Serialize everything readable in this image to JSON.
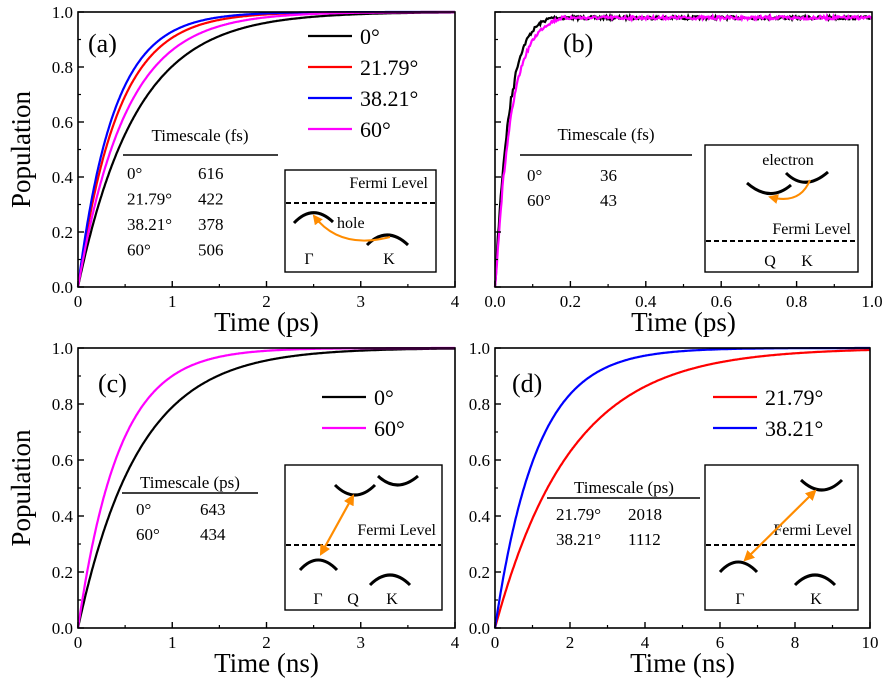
{
  "chart_data": [
    {
      "panel": "(a)",
      "type": "line",
      "xlabel": "Time (ps)",
      "ylabel": "Population",
      "xlim": [
        0,
        4
      ],
      "ylim": [
        0,
        1.0
      ],
      "xticks": [
        "0",
        "1",
        "2",
        "3",
        "4"
      ],
      "yticks": [
        "0.0",
        "0.2",
        "0.4",
        "0.6",
        "0.8",
        "1.0"
      ],
      "model": "1-exp(-t/tau)",
      "series": [
        {
          "name": "0°",
          "color": "#000000",
          "tau": 0.616
        },
        {
          "name": "21.79°",
          "color": "#ff0000",
          "tau": 0.422
        },
        {
          "name": "38.21°",
          "color": "#0000ff",
          "tau": 0.378
        },
        {
          "name": "60°",
          "color": "#ff00ff",
          "tau": 0.506
        }
      ],
      "legend": "top-right",
      "table": {
        "title": "Timescale (fs)",
        "rows": [
          [
            "0°",
            "616"
          ],
          [
            "21.79°",
            "422"
          ],
          [
            "38.21°",
            "378"
          ],
          [
            "60°",
            "506"
          ]
        ]
      },
      "inset": {
        "fermi": "Fermi Level",
        "carrier": "hole",
        "points": [
          "Γ",
          "K"
        ]
      }
    },
    {
      "panel": "(b)",
      "type": "line",
      "xlabel": "Time (ps)",
      "ylabel": "",
      "xlim": [
        0,
        1.0
      ],
      "ylim": [
        0,
        1.0
      ],
      "xticks": [
        "0.0",
        "0.2",
        "0.4",
        "0.6",
        "0.8",
        "1.0"
      ],
      "yticks": [],
      "model": "1-exp(-t/tau), noisy",
      "series": [
        {
          "name": "0°",
          "color": "#000000",
          "tau": 0.036
        },
        {
          "name": "60°",
          "color": "#ff00ff",
          "tau": 0.043
        }
      ],
      "table": {
        "title": "Timescale (fs)",
        "rows": [
          [
            "0°",
            "36"
          ],
          [
            "60°",
            "43"
          ]
        ]
      },
      "inset": {
        "fermi": "Fermi Level",
        "carrier": "electron",
        "points": [
          "Q",
          "K"
        ]
      }
    },
    {
      "panel": "(c)",
      "type": "line",
      "xlabel": "Time (ns)",
      "ylabel": "Population",
      "xlim": [
        0,
        4
      ],
      "ylim": [
        0,
        1.0
      ],
      "xticks": [
        "0",
        "1",
        "2",
        "3",
        "4"
      ],
      "yticks": [
        "0.0",
        "0.2",
        "0.4",
        "0.6",
        "0.8",
        "1.0"
      ],
      "model": "1-exp(-t/tau)",
      "series": [
        {
          "name": "0°",
          "color": "#000000",
          "tau": 0.643
        },
        {
          "name": "60°",
          "color": "#ff00ff",
          "tau": 0.434
        }
      ],
      "legend": "top-right",
      "table": {
        "title": "Timescale (ps)",
        "rows": [
          [
            "0°",
            "643"
          ],
          [
            "60°",
            "434"
          ]
        ]
      },
      "inset": {
        "fermi": "Fermi Level",
        "points": [
          "Γ",
          "Q",
          "K"
        ]
      }
    },
    {
      "panel": "(d)",
      "type": "line",
      "xlabel": "Time (ns)",
      "ylabel": "",
      "xlim": [
        0,
        10
      ],
      "ylim": [
        0,
        1.0
      ],
      "xticks": [
        "0",
        "2",
        "4",
        "6",
        "8",
        "10"
      ],
      "yticks": [
        "0.0",
        "0.2",
        "0.4",
        "0.6",
        "0.8",
        "1.0"
      ],
      "model": "1-exp(-t/tau)",
      "series": [
        {
          "name": "21.79°",
          "color": "#ff0000",
          "tau": 2.018
        },
        {
          "name": "38.21°",
          "color": "#0000ff",
          "tau": 1.112
        }
      ],
      "legend": "top-right",
      "table": {
        "title": "Timescale (ps)",
        "rows": [
          [
            "21.79°",
            "2018"
          ],
          [
            "38.21°",
            "1112"
          ]
        ]
      },
      "inset": {
        "fermi": "Fermi Level",
        "points": [
          "Γ",
          "K"
        ]
      }
    }
  ],
  "colors": {
    "arrow": "#ff8c00"
  }
}
